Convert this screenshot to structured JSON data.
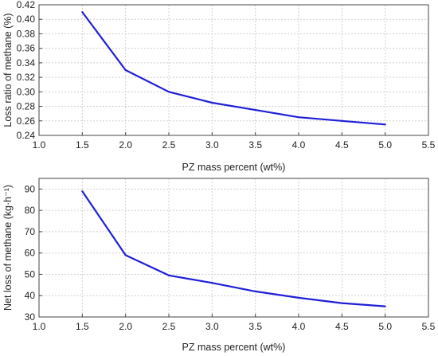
{
  "chart_data": [
    {
      "type": "line",
      "xlabel": "PZ mass percent (wt%)",
      "ylabel": "Loss ratio of methane (%)",
      "xlim": [
        1.0,
        5.5
      ],
      "ylim": [
        0.24,
        0.42
      ],
      "xticks": [
        "1.0",
        "1.5",
        "2.0",
        "2.5",
        "3.0",
        "3.5",
        "4.0",
        "4.5",
        "5.0",
        "5.5"
      ],
      "yticks": [
        "0.24",
        "0.26",
        "0.28",
        "0.30",
        "0.32",
        "0.34",
        "0.36",
        "0.38",
        "0.40",
        "0.42"
      ],
      "grid": true,
      "color": "#1f1fd6",
      "x": [
        1.5,
        2.0,
        2.5,
        3.0,
        3.5,
        4.0,
        4.5,
        5.0
      ],
      "y": [
        0.41,
        0.33,
        0.3,
        0.285,
        0.275,
        0.265,
        0.26,
        0.255
      ]
    },
    {
      "type": "line",
      "xlabel": "PZ mass percent (wt%)",
      "ylabel": "Net loss of methane (kg·h⁻¹)",
      "xlim": [
        1.0,
        5.5
      ],
      "ylim": [
        30,
        95
      ],
      "xticks": [
        "1.0",
        "1.5",
        "2.0",
        "2.5",
        "3.0",
        "3.5",
        "4.0",
        "4.5",
        "5.0",
        "5.5"
      ],
      "yticks": [
        "30",
        "40",
        "50",
        "60",
        "70",
        "80",
        "90"
      ],
      "grid": true,
      "color": "#1f1fd6",
      "x": [
        1.5,
        2.0,
        2.5,
        3.0,
        3.5,
        4.0,
        4.5,
        5.0
      ],
      "y": [
        89,
        59,
        49.5,
        46,
        42,
        39,
        36.5,
        35
      ]
    }
  ]
}
